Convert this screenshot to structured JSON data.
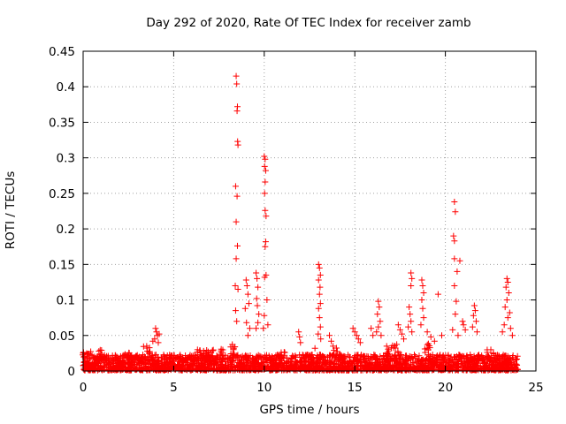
{
  "chart_data": {
    "type": "scatter",
    "title": "Day 292 of 2020, Rate Of TEC Index for receiver zamb",
    "xlabel": "GPS time / hours",
    "ylabel": "ROTI / TECUs",
    "xlim": [
      0,
      25
    ],
    "ylim": [
      0,
      0.45
    ],
    "xticks": [
      0,
      5,
      10,
      15,
      20,
      25
    ],
    "yticks": [
      0,
      0.05,
      0.1,
      0.15,
      0.2,
      0.25,
      0.3,
      0.35,
      0.4,
      0.45
    ],
    "xtick_labels": [
      "0",
      "5",
      "10",
      "15",
      "20",
      "25"
    ],
    "ytick_labels": [
      "0",
      "0.05",
      "0.1",
      "0.15",
      "0.2",
      "0.25",
      "0.3",
      "0.35",
      "0.4",
      "0.45"
    ],
    "grid": true,
    "marker": "+",
    "color": "#ff0000",
    "points": [
      [
        8.45,
        0.415
      ],
      [
        8.48,
        0.404
      ],
      [
        8.52,
        0.372
      ],
      [
        8.5,
        0.366
      ],
      [
        8.53,
        0.323
      ],
      [
        8.55,
        0.318
      ],
      [
        8.42,
        0.26
      ],
      [
        8.5,
        0.246
      ],
      [
        8.45,
        0.21
      ],
      [
        8.52,
        0.176
      ],
      [
        8.45,
        0.158
      ],
      [
        8.4,
        0.12
      ],
      [
        8.55,
        0.115
      ],
      [
        8.42,
        0.085
      ],
      [
        8.48,
        0.07
      ],
      [
        9.0,
        0.128
      ],
      [
        9.05,
        0.12
      ],
      [
        9.1,
        0.108
      ],
      [
        9.15,
        0.095
      ],
      [
        8.95,
        0.088
      ],
      [
        9.02,
        0.068
      ],
      [
        9.1,
        0.05
      ],
      [
        9.2,
        0.06
      ],
      [
        9.55,
        0.138
      ],
      [
        9.6,
        0.13
      ],
      [
        9.65,
        0.118
      ],
      [
        9.58,
        0.102
      ],
      [
        9.62,
        0.092
      ],
      [
        9.7,
        0.08
      ],
      [
        9.65,
        0.068
      ],
      [
        9.55,
        0.06
      ],
      [
        10.0,
        0.302
      ],
      [
        10.05,
        0.298
      ],
      [
        10.02,
        0.288
      ],
      [
        10.08,
        0.282
      ],
      [
        10.05,
        0.266
      ],
      [
        10.02,
        0.25
      ],
      [
        10.05,
        0.226
      ],
      [
        10.1,
        0.218
      ],
      [
        10.08,
        0.182
      ],
      [
        10.05,
        0.175
      ],
      [
        10.1,
        0.135
      ],
      [
        10.02,
        0.132
      ],
      [
        10.15,
        0.1
      ],
      [
        10.0,
        0.078
      ],
      [
        9.95,
        0.06
      ],
      [
        10.2,
        0.065
      ],
      [
        13.0,
        0.15
      ],
      [
        13.05,
        0.145
      ],
      [
        13.1,
        0.135
      ],
      [
        13.0,
        0.128
      ],
      [
        13.08,
        0.118
      ],
      [
        13.05,
        0.108
      ],
      [
        13.1,
        0.095
      ],
      [
        13.0,
        0.088
      ],
      [
        13.05,
        0.075
      ],
      [
        13.1,
        0.062
      ],
      [
        12.98,
        0.052
      ],
      [
        13.12,
        0.045
      ],
      [
        4.0,
        0.06
      ],
      [
        4.05,
        0.055
      ],
      [
        4.1,
        0.05
      ],
      [
        3.95,
        0.045
      ],
      [
        4.15,
        0.04
      ],
      [
        4.2,
        0.052
      ],
      [
        3.85,
        0.042
      ],
      [
        11.9,
        0.055
      ],
      [
        11.95,
        0.048
      ],
      [
        12.0,
        0.04
      ],
      [
        12.8,
        0.032
      ],
      [
        13.6,
        0.05
      ],
      [
        13.7,
        0.042
      ],
      [
        13.8,
        0.035
      ],
      [
        14.9,
        0.06
      ],
      [
        15.0,
        0.055
      ],
      [
        15.1,
        0.05
      ],
      [
        15.2,
        0.045
      ],
      [
        15.3,
        0.04
      ],
      [
        15.9,
        0.06
      ],
      [
        16.0,
        0.05
      ],
      [
        16.3,
        0.098
      ],
      [
        16.35,
        0.09
      ],
      [
        16.25,
        0.08
      ],
      [
        16.4,
        0.07
      ],
      [
        16.3,
        0.062
      ],
      [
        16.2,
        0.055
      ],
      [
        16.45,
        0.05
      ],
      [
        17.4,
        0.065
      ],
      [
        17.5,
        0.058
      ],
      [
        17.6,
        0.052
      ],
      [
        17.7,
        0.045
      ],
      [
        18.0,
        0.09
      ],
      [
        18.05,
        0.08
      ],
      [
        18.1,
        0.07
      ],
      [
        17.95,
        0.062
      ],
      [
        18.15,
        0.055
      ],
      [
        18.1,
        0.138
      ],
      [
        18.15,
        0.13
      ],
      [
        18.1,
        0.12
      ],
      [
        18.7,
        0.128
      ],
      [
        18.75,
        0.12
      ],
      [
        18.8,
        0.11
      ],
      [
        18.7,
        0.1
      ],
      [
        18.75,
        0.088
      ],
      [
        18.8,
        0.075
      ],
      [
        18.65,
        0.065
      ],
      [
        19.6,
        0.108
      ],
      [
        19.0,
        0.055
      ],
      [
        19.2,
        0.048
      ],
      [
        19.4,
        0.042
      ],
      [
        19.8,
        0.05
      ],
      [
        20.5,
        0.238
      ],
      [
        20.55,
        0.224
      ],
      [
        20.45,
        0.19
      ],
      [
        20.5,
        0.183
      ],
      [
        20.5,
        0.158
      ],
      [
        20.8,
        0.155
      ],
      [
        20.65,
        0.14
      ],
      [
        20.5,
        0.12
      ],
      [
        20.6,
        0.098
      ],
      [
        20.55,
        0.08
      ],
      [
        20.4,
        0.058
      ],
      [
        20.7,
        0.05
      ],
      [
        20.95,
        0.07
      ],
      [
        21.0,
        0.065
      ],
      [
        21.1,
        0.058
      ],
      [
        21.6,
        0.092
      ],
      [
        21.65,
        0.085
      ],
      [
        21.55,
        0.078
      ],
      [
        21.7,
        0.07
      ],
      [
        21.5,
        0.062
      ],
      [
        21.75,
        0.055
      ],
      [
        23.4,
        0.13
      ],
      [
        23.45,
        0.125
      ],
      [
        23.35,
        0.118
      ],
      [
        23.5,
        0.11
      ],
      [
        23.4,
        0.1
      ],
      [
        23.3,
        0.09
      ],
      [
        23.55,
        0.082
      ],
      [
        23.45,
        0.075
      ],
      [
        23.25,
        0.065
      ],
      [
        23.6,
        0.06
      ],
      [
        23.15,
        0.055
      ],
      [
        23.7,
        0.05
      ]
    ],
    "baseline": {
      "x_range": [
        0,
        24
      ],
      "typical_max": 0.022,
      "note_bursts": [
        [
          0.1,
          0.032
        ],
        [
          0.3,
          0.028
        ],
        [
          1.0,
          0.03
        ],
        [
          2.5,
          0.026
        ],
        [
          3.5,
          0.036
        ],
        [
          6.5,
          0.03
        ],
        [
          7.0,
          0.032
        ],
        [
          7.7,
          0.034
        ],
        [
          8.2,
          0.038
        ],
        [
          11.0,
          0.03
        ],
        [
          14.0,
          0.033
        ],
        [
          16.8,
          0.035
        ],
        [
          17.2,
          0.04
        ],
        [
          19.0,
          0.042
        ],
        [
          22.5,
          0.03
        ]
      ]
    }
  }
}
